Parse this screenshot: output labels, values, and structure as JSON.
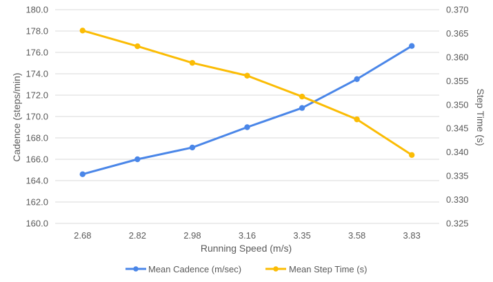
{
  "chart_data": {
    "type": "line",
    "title": "",
    "categories": [
      "2.68",
      "2.82",
      "2.98",
      "3.16",
      "3.35",
      "3.58",
      "3.83"
    ],
    "xlabel": "Running Speed (m/s)",
    "ylabel": "Cadence (steps/min)",
    "y2label": "Step Time (s)",
    "ylim": [
      160,
      180
    ],
    "y2lim": [
      0.325,
      0.37
    ],
    "y_ticks": [
      "160.0",
      "162.0",
      "164.0",
      "166.0",
      "168.0",
      "170.0",
      "172.0",
      "174.0",
      "176.0",
      "178.0",
      "180.0"
    ],
    "y2_ticks": [
      "0.325",
      "0.330",
      "0.335",
      "0.340",
      "0.345",
      "0.350",
      "0.355",
      "0.360",
      "0.365",
      "0.370"
    ],
    "grid": true,
    "legend_position": "bottom",
    "series": [
      {
        "name": "Mean Cadence (m/sec)",
        "axis": "left",
        "color": "#4a86e8",
        "values": [
          164.6,
          166.0,
          167.1,
          169.0,
          170.8,
          173.5,
          176.6
        ]
      },
      {
        "name": "Mean Step Time (s)",
        "axis": "right",
        "color": "#fbbc04",
        "values": [
          0.3656,
          0.3623,
          0.3588,
          0.3561,
          0.3517,
          0.3469,
          0.3394
        ]
      }
    ]
  }
}
